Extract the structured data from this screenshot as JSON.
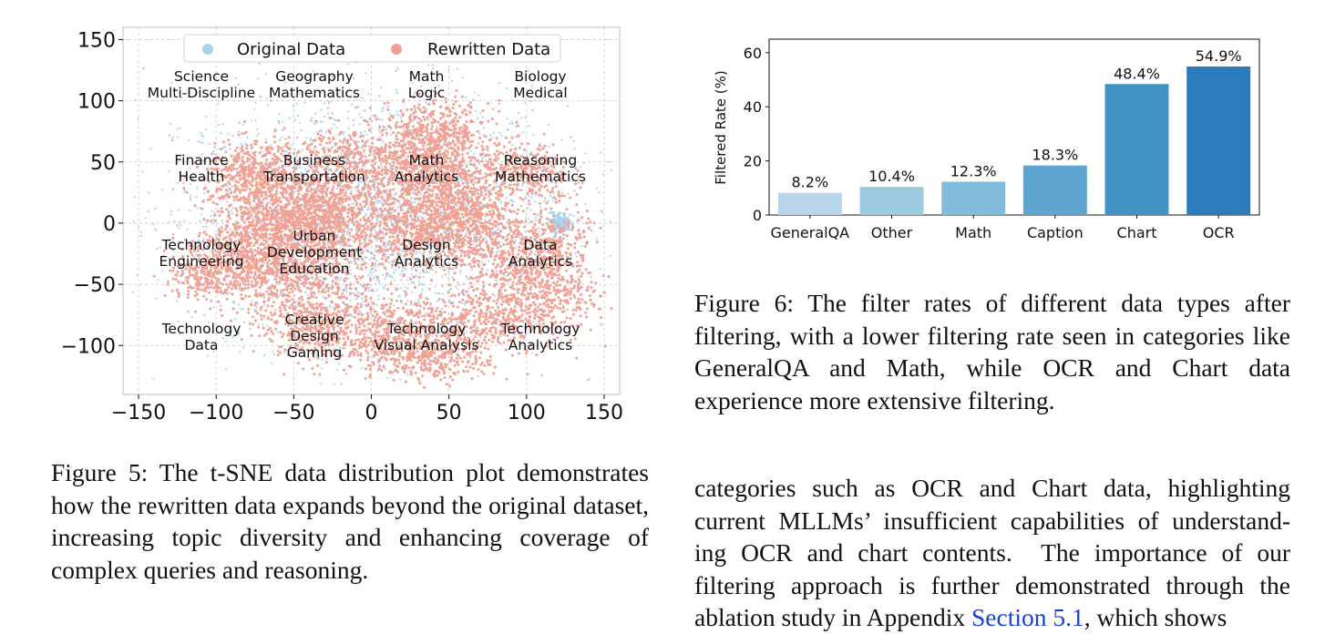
{
  "figure5": {
    "caption": "Figure 5: The t-SNE data distribution plot demonstrates how the rewritten data expands beyond the original dataset, increasing topic diversity and enhancing coverage of complex queries and reasoning.",
    "legend": [
      "Original Data",
      "Rewritten Data"
    ],
    "colors": {
      "original": "#a8d4ee",
      "rewritten": "#f0a193"
    },
    "x_ticks": [
      "−150",
      "−100",
      "−50",
      "0",
      "50",
      "100",
      "150"
    ],
    "y_ticks": [
      "150",
      "100",
      "50",
      "0",
      "−50",
      "−100"
    ],
    "region_labels": [
      [
        "Science",
        "Multi-Discipline"
      ],
      [
        "Geography",
        "Mathematics"
      ],
      [
        "Math",
        "Logic"
      ],
      [
        "Biology",
        "Medical"
      ],
      [
        "Finance",
        "Health"
      ],
      [
        "Business",
        "Transportation"
      ],
      [
        "Math",
        "Analytics"
      ],
      [
        "Reasoning",
        "Mathematics"
      ],
      [
        "Technology",
        "Engineering"
      ],
      [
        "Urban",
        "Development",
        "Education"
      ],
      [
        "Design",
        "Analytics"
      ],
      [
        "Data",
        "Analytics"
      ],
      [
        "Technology",
        "Data"
      ],
      [
        "Creative",
        "Design",
        "Gaming"
      ],
      [
        "Technology",
        "Visual Analysis"
      ],
      [
        "Technology",
        "Analytics"
      ]
    ]
  },
  "figure6": {
    "caption": "Figure 6: The filter rates of different data types after filtering, with a lower filtering rate seen in categories like GeneralQA and Math, while OCR and Chart data experience more extensive filtering."
  },
  "chart_data": [
    {
      "type": "scatter",
      "legend": [
        "Original Data",
        "Rewritten Data"
      ],
      "xlim": [
        -160,
        160
      ],
      "ylim": [
        -140,
        160
      ],
      "x_ticks": [
        -150,
        -100,
        -50,
        0,
        50,
        100,
        150
      ],
      "y_ticks": [
        150,
        100,
        50,
        0,
        -50,
        -100
      ],
      "grid": true,
      "legend_position": "top"
    },
    {
      "type": "bar",
      "categories": [
        "GeneralQA",
        "Other",
        "Math",
        "Caption",
        "Chart",
        "OCR"
      ],
      "values": [
        8.2,
        10.4,
        12.3,
        18.3,
        48.4,
        54.9
      ],
      "value_labels": [
        "8.2%",
        "10.4%",
        "12.3%",
        "18.3%",
        "48.4%",
        "54.9%"
      ],
      "ylabel": "Filtered Rate (%)",
      "ylim": [
        0,
        65
      ],
      "y_ticks": [
        0,
        20,
        40,
        60
      ],
      "colors": [
        "#b7d6ea",
        "#9ecae1",
        "#83bbdc",
        "#5fa5d1",
        "#4292c6",
        "#2c7cbb"
      ]
    }
  ],
  "body": {
    "line1": "categories such as OCR and Chart data, highlighting",
    "line2": "current MLLMs’ insufficient capabilities of understand-",
    "line3": "ing OCR and chart contents.  The importance of our",
    "line4": "filtering approach is further demonstrated through the",
    "line5a": "ablation study in Appendix ",
    "line5_link": "Section 5.1",
    "line5b": ", which shows"
  }
}
